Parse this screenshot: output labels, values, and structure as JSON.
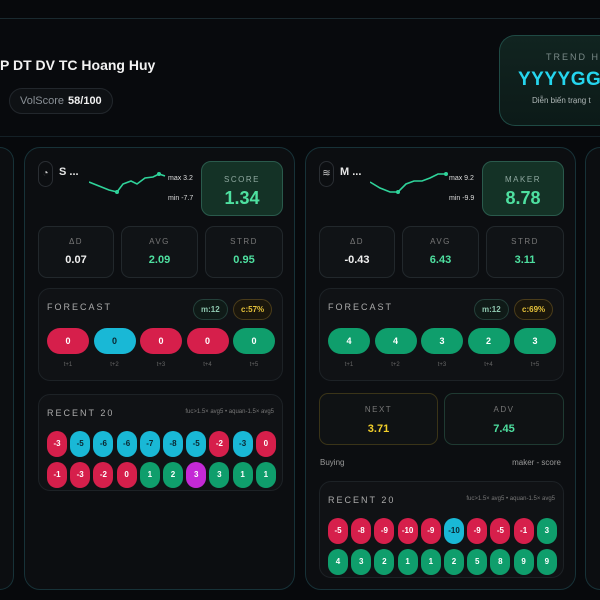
{
  "header": {
    "title": "P DT DV TC Hoang Huy",
    "volscore_label": "VolScore",
    "volscore_value": "58/100"
  },
  "trend": {
    "label": "TREND HI",
    "value": "YYYYGG",
    "subtitle": "Diễn biến trạng t"
  },
  "cards": [
    {
      "name": "S ...",
      "icon": "gauge-icon",
      "max": "max 3.2",
      "min": "min -7.7",
      "score_label": "SCORE",
      "score": "1.34",
      "stats": [
        {
          "label": "ΔD",
          "value": "0.07",
          "color": "#f0f0f0"
        },
        {
          "label": "AVG",
          "value": "2.09",
          "color": "#4ee0a0"
        },
        {
          "label": "STRD",
          "value": "0.95",
          "color": "#4ee0a0"
        }
      ],
      "forecast": {
        "title": "FORECAST",
        "m": "m:12",
        "c": "c:57%",
        "items": [
          {
            "v": "0",
            "c": "red",
            "l": "t+1"
          },
          {
            "v": "0",
            "c": "cyan",
            "l": "t+2"
          },
          {
            "v": "0",
            "c": "red",
            "l": "t+3"
          },
          {
            "v": "0",
            "c": "red",
            "l": "t+4"
          },
          {
            "v": "0",
            "c": "green",
            "l": "t+5"
          }
        ]
      },
      "recent": {
        "title": "RECENT 20",
        "hint": "fuc>1.5× avg5 • aquan-1.5× avg5",
        "items": [
          {
            "v": "-3",
            "c": "red"
          },
          {
            "v": "-5",
            "c": "cyan"
          },
          {
            "v": "-6",
            "c": "cyan"
          },
          {
            "v": "-6",
            "c": "cyan"
          },
          {
            "v": "-7",
            "c": "cyan"
          },
          {
            "v": "-8",
            "c": "cyan"
          },
          {
            "v": "-5",
            "c": "cyan"
          },
          {
            "v": "-2",
            "c": "red"
          },
          {
            "v": "-3",
            "c": "cyan"
          },
          {
            "v": "0",
            "c": "red"
          },
          {
            "v": "-1",
            "c": "red"
          },
          {
            "v": "-3",
            "c": "red"
          },
          {
            "v": "-2",
            "c": "red"
          },
          {
            "v": "0",
            "c": "red"
          },
          {
            "v": "1",
            "c": "green"
          },
          {
            "v": "2",
            "c": "green"
          },
          {
            "v": "3",
            "c": "purple"
          },
          {
            "v": "3",
            "c": "green"
          },
          {
            "v": "1",
            "c": "green"
          },
          {
            "v": "1",
            "c": "green"
          }
        ]
      }
    },
    {
      "name": "M ...",
      "icon": "waves-icon",
      "max": "max 9.2",
      "min": "min -9.9",
      "score_label": "MAKER",
      "score": "8.78",
      "stats": [
        {
          "label": "ΔD",
          "value": "-0.43",
          "color": "#f0f0f0"
        },
        {
          "label": "AVG",
          "value": "6.43",
          "color": "#4ee0a0"
        },
        {
          "label": "STRD",
          "value": "3.11",
          "color": "#4ee0a0"
        }
      ],
      "forecast": {
        "title": "FORECAST",
        "m": "m:12",
        "c": "c:69%",
        "items": [
          {
            "v": "4",
            "c": "green",
            "l": "t+1"
          },
          {
            "v": "4",
            "c": "green",
            "l": "t+2"
          },
          {
            "v": "3",
            "c": "green",
            "l": "t+3"
          },
          {
            "v": "2",
            "c": "green",
            "l": "t+4"
          },
          {
            "v": "3",
            "c": "green",
            "l": "t+5"
          }
        ]
      },
      "next": {
        "label": "NEXT",
        "value": "3.71"
      },
      "adv": {
        "label": "ADV",
        "value": "7.45"
      },
      "footer_left": "Buying",
      "footer_right": "maker - score",
      "recent": {
        "title": "RECENT 20",
        "hint": "fuc>1.5× avg5 • aquan-1.5× avg5",
        "items": [
          {
            "v": "-5",
            "c": "red"
          },
          {
            "v": "-8",
            "c": "red"
          },
          {
            "v": "-9",
            "c": "red"
          },
          {
            "v": "-10",
            "c": "red"
          },
          {
            "v": "-9",
            "c": "red"
          },
          {
            "v": "-10",
            "c": "cyan"
          },
          {
            "v": "-9",
            "c": "red"
          },
          {
            "v": "-5",
            "c": "red"
          },
          {
            "v": "-1",
            "c": "red"
          },
          {
            "v": "3",
            "c": "green"
          },
          {
            "v": "4",
            "c": "green"
          },
          {
            "v": "3",
            "c": "green"
          },
          {
            "v": "2",
            "c": "green"
          },
          {
            "v": "1",
            "c": "green"
          },
          {
            "v": "1",
            "c": "green"
          },
          {
            "v": "2",
            "c": "green"
          },
          {
            "v": "5",
            "c": "green"
          },
          {
            "v": "8",
            "c": "green"
          },
          {
            "v": "9",
            "c": "green"
          },
          {
            "v": "9",
            "c": "green"
          }
        ]
      }
    }
  ]
}
